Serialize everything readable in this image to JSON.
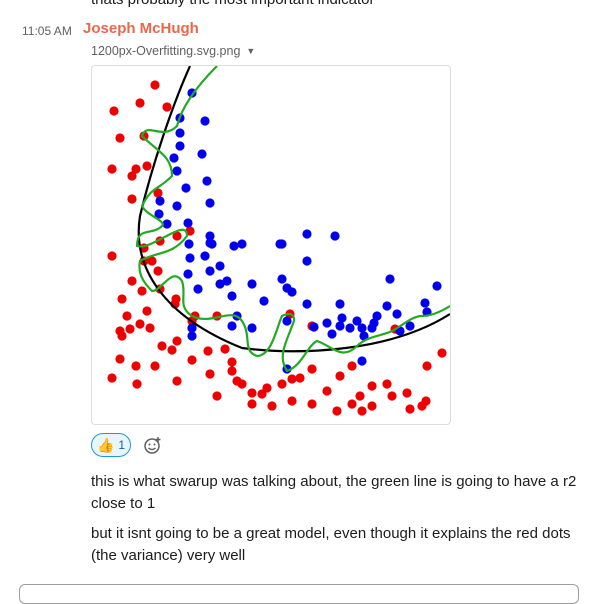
{
  "previous_message": {
    "text": "thats probably the most important indicator"
  },
  "message": {
    "timestamp": "11:05 AM",
    "author": "Joseph McHugh",
    "author_color": "#e8684a",
    "attachment": {
      "filename": "1200px-Overfitting.svg.png",
      "caret_icon": "chevron-down-icon"
    },
    "reactions": [
      {
        "emoji_icon": "thumbs-up-icon",
        "count": "1"
      }
    ],
    "add_reaction_icon": "add-emoji-icon",
    "paragraphs": [
      "this is what swarup was talking about, the green line is going to have a r2 close to 1",
      "but it isnt going to be a great model, even though it explains the red dots (the variance) very well"
    ]
  },
  "figure_colors": {
    "red": "#ee0000",
    "blue": "#0000ee",
    "green": "#22aa22",
    "black": "#000000"
  }
}
